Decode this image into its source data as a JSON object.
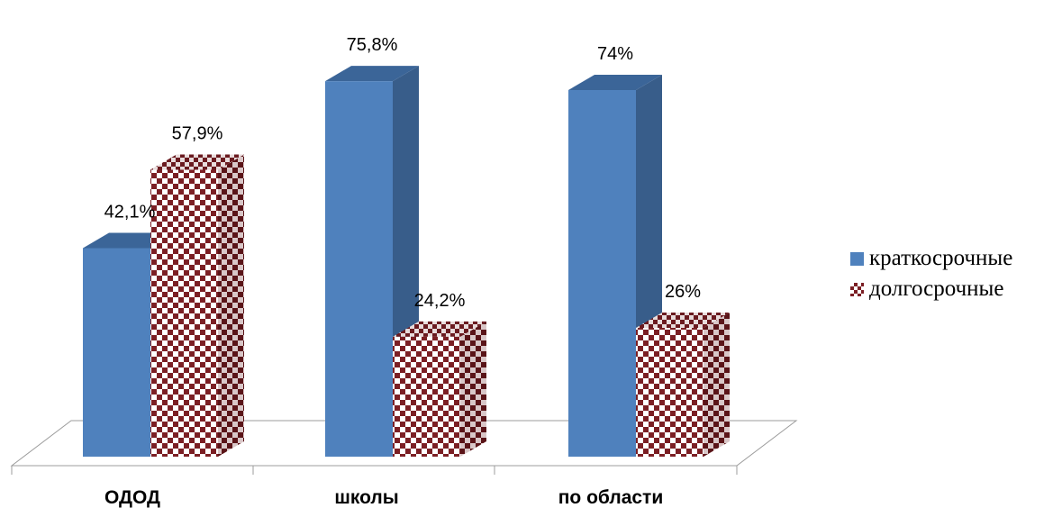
{
  "chart_data": {
    "type": "bar",
    "categories": [
      "ОДОД",
      "школы",
      "по области"
    ],
    "series": [
      {
        "name": "краткосрочные",
        "values": [
          42.1,
          75.8,
          74
        ],
        "labels": [
          "42,1%",
          "75,8%",
          "74%"
        ],
        "color": "#4f81bd"
      },
      {
        "name": "долгосрочные",
        "values": [
          57.9,
          24.2,
          26
        ],
        "labels": [
          "57,9%",
          "24,2%",
          "26%"
        ],
        "color": "#7b1f24"
      }
    ],
    "ylim": [
      0,
      100
    ],
    "grid": false,
    "legend": "right",
    "style": "3d-clustered-column"
  }
}
